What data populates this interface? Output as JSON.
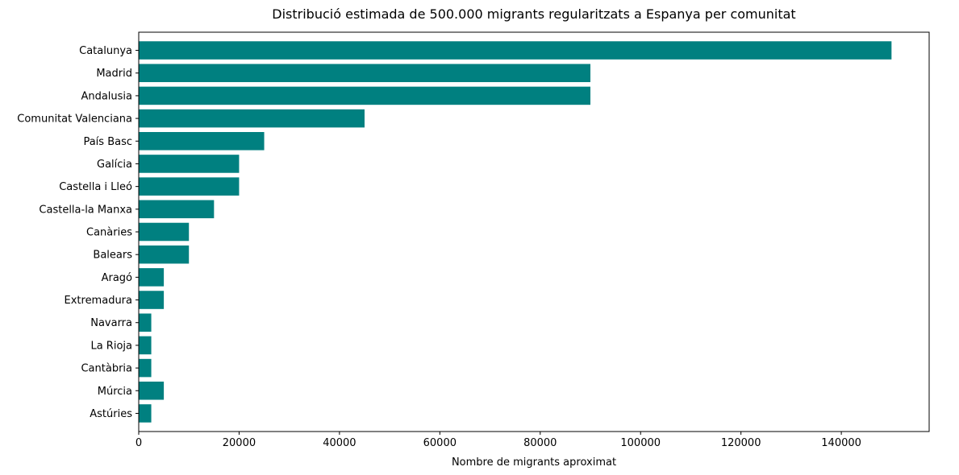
{
  "chart_data": {
    "type": "bar",
    "orientation": "horizontal",
    "title": "Distribució estimada de 500.000 migrants regularitzats a Espanya per comunitat",
    "xlabel": "Nombre de migrants aproximat",
    "ylabel": "",
    "xlim": [
      0,
      157500
    ],
    "xticks": [
      0,
      20000,
      40000,
      60000,
      80000,
      100000,
      120000,
      140000
    ],
    "grid": false,
    "color": "#008080",
    "categories": [
      "Catalunya",
      "Madrid",
      "Andalusia",
      "Comunitat Valenciana",
      "País Basc",
      "Galícia",
      "Castella i Lleó",
      "Castella-la Manxa",
      "Canàries",
      "Balears",
      "Aragó",
      "Extremadura",
      "Navarra",
      "La Rioja",
      "Cantàbria",
      "Múrcia",
      "Astúries"
    ],
    "values": [
      150000,
      90000,
      90000,
      45000,
      25000,
      20000,
      20000,
      15000,
      10000,
      10000,
      5000,
      5000,
      2500,
      2500,
      2500,
      5000,
      2500
    ]
  }
}
